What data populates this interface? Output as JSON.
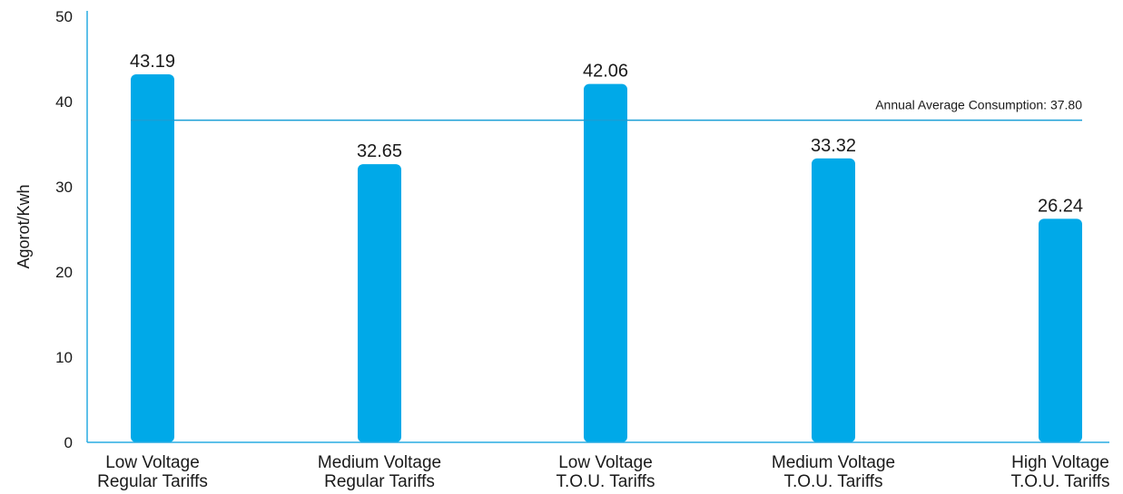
{
  "chart_data": {
    "type": "bar",
    "ylabel": "Agorot/Kwh",
    "ylim": [
      0,
      50
    ],
    "yticks": [
      "0",
      "10",
      "20",
      "30",
      "40",
      "50"
    ],
    "categories": [
      [
        "Low Voltage",
        "Regular Tariffs"
      ],
      [
        "Medium Voltage",
        "Regular Tariffs"
      ],
      [
        "Low Voltage",
        "T.O.U. Tariffs"
      ],
      [
        "Medium Voltage",
        "T.O.U. Tariffs"
      ],
      [
        "High Voltage",
        "T.O.U. Tariffs"
      ]
    ],
    "values": [
      43.19,
      32.65,
      42.06,
      33.32,
      26.24
    ],
    "value_labels": [
      "43.19",
      "32.65",
      "42.06",
      "33.32",
      "26.24"
    ],
    "reference_line": {
      "value": 37.8,
      "label": "Annual Average Consumption: 37.80"
    },
    "grid": false,
    "colors": {
      "bar": "#00a9e8",
      "axis": "#29abe2",
      "reference_line": "#1a9fd6"
    }
  }
}
